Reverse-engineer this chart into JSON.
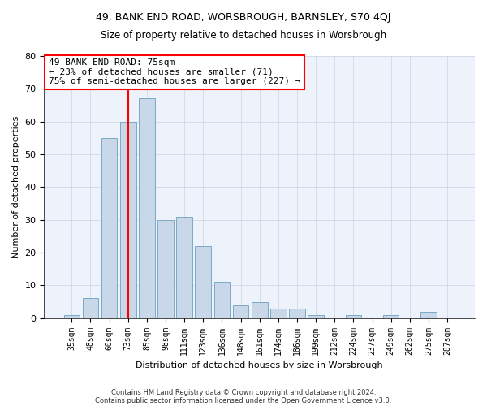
{
  "title1": "49, BANK END ROAD, WORSBROUGH, BARNSLEY, S70 4QJ",
  "title2": "Size of property relative to detached houses in Worsbrough",
  "xlabel": "Distribution of detached houses by size in Worsbrough",
  "ylabel": "Number of detached properties",
  "categories": [
    "35sqm",
    "48sqm",
    "60sqm",
    "73sqm",
    "85sqm",
    "98sqm",
    "111sqm",
    "123sqm",
    "136sqm",
    "148sqm",
    "161sqm",
    "174sqm",
    "186sqm",
    "199sqm",
    "212sqm",
    "224sqm",
    "237sqm",
    "249sqm",
    "262sqm",
    "275sqm",
    "287sqm"
  ],
  "values": [
    1,
    6,
    55,
    60,
    67,
    30,
    31,
    22,
    11,
    4,
    5,
    3,
    3,
    1,
    0,
    1,
    0,
    1,
    0,
    2,
    0
  ],
  "bar_color": "#c8d8e8",
  "bar_edge_color": "#7aaac8",
  "vline_x": 3,
  "vline_color": "red",
  "annotation_text": "49 BANK END ROAD: 75sqm\n← 23% of detached houses are smaller (71)\n75% of semi-detached houses are larger (227) →",
  "annotation_box_color": "white",
  "annotation_box_edge_color": "red",
  "ylim": [
    0,
    80
  ],
  "yticks": [
    0,
    10,
    20,
    30,
    40,
    50,
    60,
    70,
    80
  ],
  "grid_color": "#d0d8e8",
  "footer1": "Contains HM Land Registry data © Crown copyright and database right 2024.",
  "footer2": "Contains public sector information licensed under the Open Government Licence v3.0.",
  "bg_color": "#eef2fa"
}
